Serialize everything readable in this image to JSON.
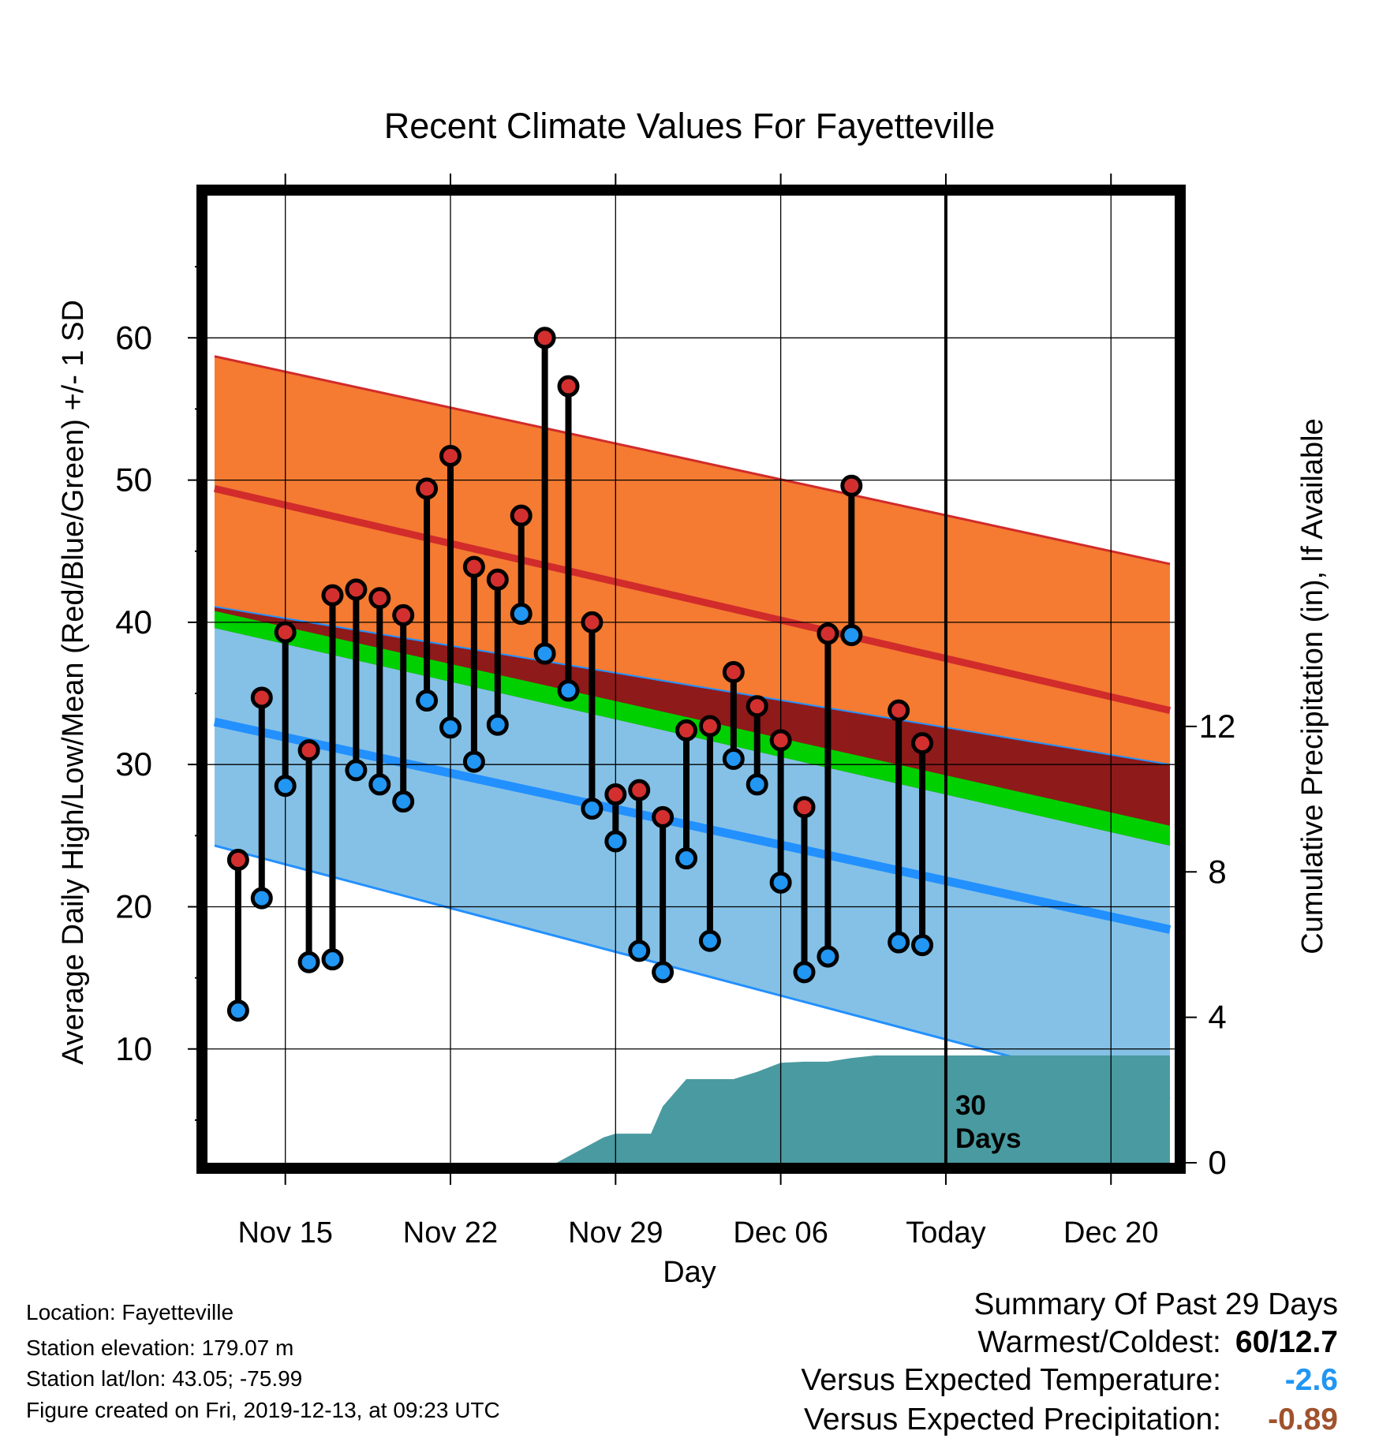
{
  "chart_data": {
    "type": "line",
    "title": "Recent Climate Values For Fayetteville",
    "xlabel": "Day",
    "ylabel": "Average Daily High/Low/Mean (Red/Blue/Green) +/- 1 SD",
    "y2label": "Cumulative Precipitation (in), If Available",
    "x_tick_labels": [
      "Nov 15",
      "Nov 22",
      "Nov 29",
      "Dec 06",
      "Today",
      "Dec 20"
    ],
    "x_tick_days": [
      15,
      22,
      29,
      36,
      43,
      50
    ],
    "xlim": [
      11.7,
      52.7
    ],
    "ylim": [
      2,
      70
    ],
    "y_ticks": [
      10,
      20,
      30,
      40,
      50,
      60
    ],
    "y2lim": [
      0,
      26.6
    ],
    "y2_ticks": [
      0,
      4,
      8,
      12
    ],
    "grid": true,
    "today_day": 43,
    "today_annotation": "30\nDays",
    "colors": {
      "high_band": "#f47b31",
      "high_line": "#d12b2b",
      "overlap_band": "#8e1a1a",
      "low_band": "#85c1e6",
      "low_line": "#2290ff",
      "mean_band": "#00d000",
      "precip_fill": "#4a9aa1",
      "high_marker": "#d32f2f",
      "low_marker": "#2196f3",
      "frame": "#000000"
    },
    "normals": {
      "days": [
        12,
        52.5
      ],
      "high_plus_sd": [
        58.7,
        44.1
      ],
      "high_mean": [
        49.4,
        33.8
      ],
      "high_minus_sd": [
        41.1,
        30.0
      ],
      "low_plus_sd": [
        41.1,
        30.0
      ],
      "low_mean": [
        33.0,
        18.4
      ],
      "low_minus_sd": [
        24.3,
        6.5
      ],
      "mean_band_top": [
        40.8,
        25.7
      ],
      "mean_band_bottom": [
        39.6,
        24.3
      ]
    },
    "observations": [
      {
        "day": 13,
        "high": 23.3,
        "low": 12.7
      },
      {
        "day": 14,
        "high": 34.7,
        "low": 20.6
      },
      {
        "day": 15,
        "high": 39.3,
        "low": 28.5
      },
      {
        "day": 16,
        "high": 31.0,
        "low": 16.1
      },
      {
        "day": 17,
        "high": 41.9,
        "low": 16.3
      },
      {
        "day": 18,
        "high": 42.3,
        "low": 29.6
      },
      {
        "day": 19,
        "high": 41.7,
        "low": 28.6
      },
      {
        "day": 20,
        "high": 40.5,
        "low": 27.4
      },
      {
        "day": 21,
        "high": 49.4,
        "low": 34.5
      },
      {
        "day": 22,
        "high": 51.7,
        "low": 32.6
      },
      {
        "day": 23,
        "high": 43.9,
        "low": 30.2
      },
      {
        "day": 24,
        "high": 43.0,
        "low": 32.8
      },
      {
        "day": 25,
        "high": 47.5,
        "low": 40.6
      },
      {
        "day": 26,
        "high": 60.0,
        "low": 37.8
      },
      {
        "day": 27,
        "high": 56.6,
        "low": 35.2
      },
      {
        "day": 28,
        "high": 40.0,
        "low": 26.9
      },
      {
        "day": 29,
        "high": 27.9,
        "low": 24.6
      },
      {
        "day": 30,
        "high": 28.2,
        "low": 16.9
      },
      {
        "day": 31,
        "high": 26.3,
        "low": 15.4
      },
      {
        "day": 32,
        "high": 32.4,
        "low": 23.4
      },
      {
        "day": 33,
        "high": 32.7,
        "low": 17.6
      },
      {
        "day": 34,
        "high": 36.5,
        "low": 30.4
      },
      {
        "day": 35,
        "high": 34.1,
        "low": 28.6
      },
      {
        "day": 36,
        "high": 31.7,
        "low": 21.7
      },
      {
        "day": 37,
        "high": 27.0,
        "low": 15.4
      },
      {
        "day": 38,
        "high": 39.2,
        "low": 16.5
      },
      {
        "day": 39,
        "high": 49.6,
        "low": 39.1
      },
      {
        "day": 41,
        "high": 33.8,
        "low": 17.5
      },
      {
        "day": 42,
        "high": 31.5,
        "low": 17.3
      }
    ],
    "precip": {
      "days": [
        12,
        16,
        20,
        24,
        26.5,
        27.5,
        28.5,
        29,
        29.5,
        30,
        30.5,
        31,
        32,
        33,
        34,
        35,
        36,
        37,
        38,
        39,
        40,
        41,
        42,
        43,
        52.5
      ],
      "values": [
        0,
        0,
        0,
        0,
        0,
        0.35,
        0.7,
        0.8,
        0.8,
        0.8,
        0.8,
        1.55,
        2.3,
        2.3,
        2.3,
        2.5,
        2.75,
        2.78,
        2.78,
        2.88,
        2.95,
        2.95,
        2.95,
        2.95,
        2.95
      ]
    }
  },
  "footer": {
    "location": "Location: Fayetteville",
    "elevation": "Station elevation: 179.07 m",
    "latlon": "Station lat/lon: 43.05; -75.99",
    "created": "Figure created on Fri, 2019-12-13, at 09:23 UTC"
  },
  "summary": {
    "title": "Summary Of Past 29 Days",
    "warmest_coldest_label": "Warmest/Coldest:",
    "warmest_coldest_value": "60/12.7",
    "temp_label": "Versus Expected Temperature:",
    "temp_value": "-2.6",
    "temp_color": "#2196f3",
    "precip_label": "Versus Expected Precipitation:",
    "precip_value": "-0.89",
    "precip_color": "#a0522d"
  }
}
